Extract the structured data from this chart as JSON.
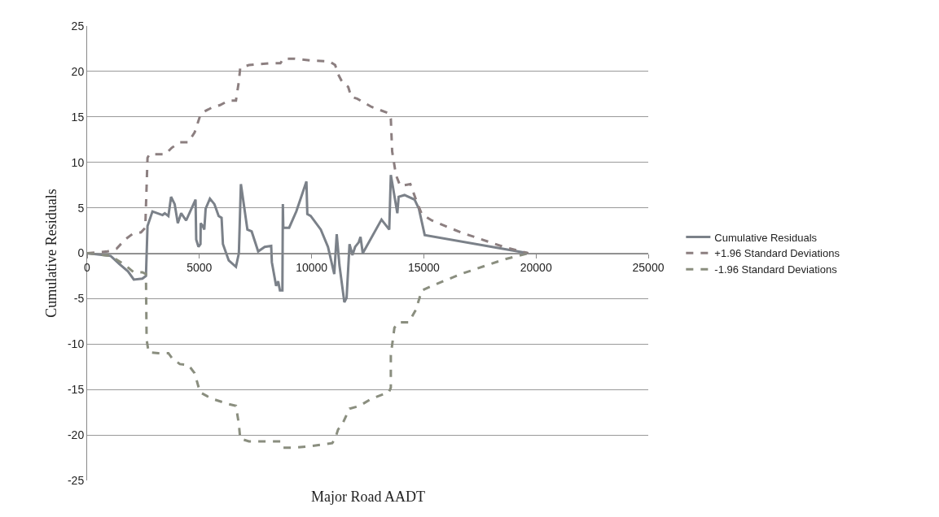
{
  "chart_data": {
    "type": "line",
    "xlabel": "Major Road AADT",
    "ylabel": "Cumulative Residuals",
    "xlim": [
      0,
      25000
    ],
    "xticks": [
      0,
      5000,
      10000,
      15000,
      20000,
      25000
    ],
    "ylim": [
      -25,
      25
    ],
    "yticks": [
      -25,
      -20,
      -15,
      -10,
      -5,
      0,
      5,
      10,
      15,
      20,
      25
    ],
    "grid": "y",
    "legend": "right",
    "marker": "none",
    "series": [
      {
        "name": "Cumulative Residuals",
        "color": "#7b8189",
        "line_style": "solid",
        "x": [
          0,
          1050,
          1440,
          1820,
          2080,
          2460,
          2620,
          2690,
          2910,
          3360,
          3460,
          3620,
          3740,
          3900,
          4040,
          4190,
          4410,
          4830,
          4860,
          4960,
          5050,
          5060,
          5150,
          5220,
          5280,
          5470,
          5670,
          5860,
          5990,
          6050,
          6310,
          6630,
          6760,
          6850,
          6950,
          7140,
          7330,
          7620,
          7910,
          8200,
          8230,
          8420,
          8510,
          8590,
          8700,
          8720,
          8740,
          9000,
          9320,
          9770,
          9810,
          9960,
          10410,
          10730,
          11010,
          11120,
          11240,
          11460,
          11560,
          11690,
          11820,
          11940,
          12100,
          12180,
          12280,
          13115,
          13460,
          13530,
          13630,
          13820,
          13880,
          14140,
          14590,
          14780,
          15040,
          19650
        ],
        "values": [
          0,
          -0.3,
          -1.2,
          -2,
          -2.9,
          -2.8,
          -2.5,
          3,
          4.6,
          4.2,
          4.4,
          4.1,
          6.2,
          5.4,
          3.3,
          4.4,
          3.6,
          5.9,
          1.5,
          0.7,
          1,
          3.3,
          3,
          2.6,
          4.9,
          6,
          5.4,
          4.1,
          3.9,
          1,
          -0.8,
          -1.5,
          0,
          7.6,
          5.9,
          2.6,
          2.4,
          0.2,
          0.7,
          0.8,
          -1,
          -3.6,
          -3.1,
          -4.1,
          -4.1,
          5.4,
          2.8,
          2.8,
          4.6,
          7.9,
          4.3,
          4.1,
          2.6,
          0.7,
          -2.3,
          2.1,
          -1.3,
          -5.4,
          -4.9,
          1,
          -0.2,
          0.7,
          1.2,
          1.8,
          0,
          3.7,
          2.6,
          8.6,
          7.2,
          4.4,
          6.2,
          6.4,
          5.9,
          4.9,
          2,
          0
        ]
      },
      {
        "name": "+1.96 Standard Deviations",
        "color": "#8c7f80",
        "line_style": "dashed",
        "x": [
          0,
          920,
          1310,
          1690,
          2010,
          2400,
          2590,
          2690,
          2780,
          3490,
          3770,
          4130,
          4510,
          4790,
          5030,
          5150,
          5540,
          5920,
          6310,
          6630,
          6760,
          6820,
          7210,
          8100,
          8610,
          8740,
          9260,
          10020,
          10800,
          11050,
          11180,
          11370,
          11630,
          11770,
          12030,
          12670,
          13440,
          13530,
          13590,
          13760,
          13950,
          14400,
          14650,
          14910,
          15360,
          16640,
          18560,
          19650
        ],
        "values": [
          0,
          0.2,
          0.5,
          1.5,
          2.1,
          2.3,
          2.8,
          10.5,
          10.9,
          10.9,
          11.6,
          12.2,
          12.2,
          13.3,
          15.1,
          15.5,
          16,
          16.3,
          16.8,
          16.8,
          18.9,
          20.4,
          20.7,
          20.9,
          20.9,
          21.4,
          21.4,
          21.2,
          21.1,
          20.7,
          19.7,
          18.8,
          18.3,
          17.2,
          17,
          16.1,
          15.4,
          14.8,
          11.2,
          8.6,
          7.4,
          7.6,
          5.9,
          4.3,
          3.6,
          2.3,
          0.7,
          0
        ]
      },
      {
        "name": "-1.96 Standard Deviations",
        "color": "#8a8e7f",
        "line_style": "dashed",
        "x": [
          0,
          1050,
          1690,
          2080,
          2460,
          2620,
          2650,
          2740,
          3170,
          3620,
          3770,
          4130,
          4510,
          4790,
          5030,
          5540,
          6310,
          6630,
          6760,
          6820,
          7210,
          8100,
          8610,
          8740,
          9260,
          10020,
          10920,
          11050,
          11180,
          11370,
          11690,
          12140,
          12670,
          13440,
          13530,
          13530,
          13690,
          13880,
          14330,
          14650,
          14910,
          15360,
          16640,
          18560,
          19650
        ],
        "values": [
          0,
          -0.3,
          -1.3,
          -2.1,
          -2.1,
          -2.3,
          -9.5,
          -10.9,
          -11,
          -11,
          -11.5,
          -12.2,
          -12.3,
          -13.2,
          -15.3,
          -16,
          -16.6,
          -16.8,
          -18.8,
          -20.4,
          -20.7,
          -20.7,
          -20.7,
          -21.4,
          -21.4,
          -21.2,
          -20.9,
          -20.4,
          -19.4,
          -18.8,
          -17.1,
          -16.8,
          -16,
          -15.3,
          -14.8,
          -11.2,
          -8.2,
          -7.6,
          -7.6,
          -6.2,
          -4.1,
          -3.6,
          -2.3,
          -0.7,
          0
        ]
      }
    ]
  }
}
